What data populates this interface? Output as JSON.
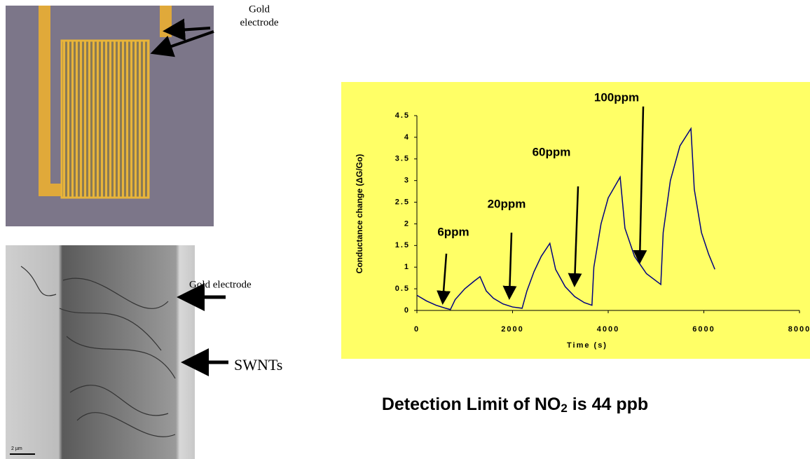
{
  "chart_data": {
    "type": "line",
    "xlabel": "Time (s)",
    "ylabel": "Conductance change (ΔG/Go)",
    "x": [
      0,
      200,
      400,
      600,
      700,
      800,
      1000,
      1200,
      1320,
      1450,
      1600,
      1800,
      2000,
      2200,
      2300,
      2450,
      2600,
      2780,
      2900,
      3100,
      3300,
      3500,
      3660,
      3700,
      3850,
      4000,
      4250,
      4350,
      4550,
      4800,
      5100,
      5150,
      5300,
      5500,
      5730,
      5800,
      5950,
      6100,
      6230
    ],
    "series": [
      {
        "color": "#000080",
        "values": [
          0.35,
          0.22,
          0.12,
          0.05,
          0.02,
          0.25,
          0.5,
          0.68,
          0.78,
          0.45,
          0.28,
          0.15,
          0.08,
          0.05,
          0.45,
          0.9,
          1.25,
          1.55,
          0.95,
          0.55,
          0.32,
          0.18,
          0.12,
          1.0,
          2.0,
          2.6,
          3.08,
          1.9,
          1.25,
          0.85,
          0.6,
          1.8,
          3.0,
          3.8,
          4.2,
          2.8,
          1.8,
          1.3,
          0.95
        ]
      }
    ],
    "xlim": [
      0,
      8000
    ],
    "xticks": [
      0,
      2000,
      4000,
      6000,
      8000
    ],
    "ylim": [
      0,
      4.5
    ],
    "yticks": [
      0,
      0.5,
      1,
      1.5,
      2,
      2.5,
      3,
      3.5,
      4,
      4.5
    ],
    "background": "#ffff66",
    "annotations": [
      "6ppm",
      "20ppm",
      "60ppm",
      "100ppm"
    ]
  },
  "caption": {
    "before": "Detection Limit of NO",
    "subscript": "2",
    "after": " is 44 ppb"
  },
  "images": {
    "top_label": [
      "Gold",
      "electrode"
    ],
    "bottom_labels": [
      "Gold electrode",
      "SWNTs"
    ],
    "scale_bar": "2 µm"
  }
}
